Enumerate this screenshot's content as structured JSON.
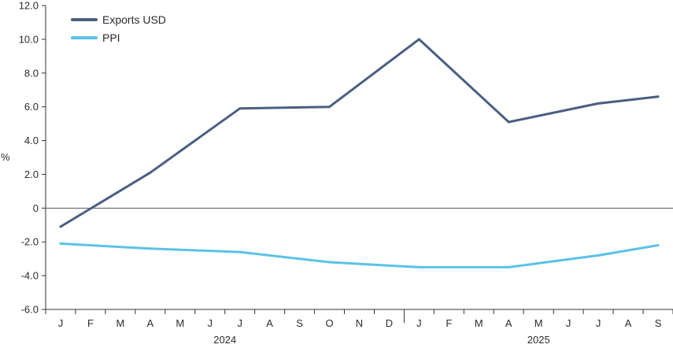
{
  "chart_data": {
    "type": "line",
    "ylabel": "%",
    "ylim": [
      -6,
      12
    ],
    "yticks": [
      "12.0",
      "10.0",
      "8.0",
      "6.0",
      "4.0",
      "2.0",
      "0",
      "-2.0",
      "-4.0",
      "-6.0"
    ],
    "categories": [
      "J",
      "F",
      "M",
      "A",
      "M",
      "J",
      "J",
      "A",
      "S",
      "O",
      "N",
      "D",
      "J",
      "F",
      "M",
      "A",
      "M",
      "J",
      "J",
      "A",
      "S"
    ],
    "year_labels": [
      "2024",
      "2025"
    ],
    "series": [
      {
        "name": "Exports USD",
        "color": "#4a5f82",
        "values": [
          -1.1,
          null,
          null,
          2.1,
          null,
          null,
          5.9,
          null,
          null,
          6.0,
          null,
          null,
          10.0,
          null,
          null,
          5.1,
          null,
          null,
          6.2,
          null,
          6.6
        ]
      },
      {
        "name": "PPI",
        "color": "#5bc2e7",
        "values": [
          -2.1,
          null,
          null,
          -2.4,
          null,
          null,
          -2.6,
          null,
          null,
          -3.2,
          null,
          null,
          -3.5,
          null,
          null,
          -3.5,
          null,
          null,
          -2.8,
          null,
          -2.2
        ]
      }
    ],
    "legend_position": "top-left",
    "grid": false
  }
}
